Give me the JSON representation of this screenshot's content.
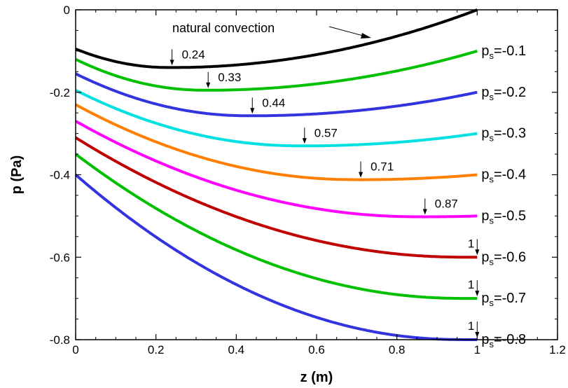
{
  "chart_data": {
    "type": "line",
    "xlabel": "z (m)",
    "ylabel": "p (Pa)",
    "xlim": [
      0,
      1.2
    ],
    "ylim": [
      -0.8,
      0
    ],
    "x_ticks": [
      "0",
      "0.2",
      "0.4",
      "0.6",
      "0.8",
      "1",
      "1.2"
    ],
    "y_ticks": [
      "0",
      "-0.2",
      "-0.4",
      "-0.6",
      "-0.8"
    ],
    "grid": false,
    "annotation_text": "natural convection",
    "series": [
      {
        "name": "natural convection",
        "label_prefix": "",
        "label_sub": "",
        "label_value": "",
        "color": "#000000",
        "start": -0.095,
        "end": 0.0,
        "min_z": 0.24,
        "min_p": -0.14,
        "min_label": "0.24"
      },
      {
        "name": "ps=-0.1",
        "label_prefix": "p",
        "label_sub": "s",
        "label_value": "=-0.1",
        "color": "#00c000",
        "start": -0.12,
        "end": -0.1,
        "min_z": 0.33,
        "min_p": -0.195,
        "min_label": "0.33"
      },
      {
        "name": "ps=-0.2",
        "label_prefix": "p",
        "label_sub": "s",
        "label_value": "=-0.2",
        "color": "#3333e0",
        "start": -0.155,
        "end": -0.2,
        "min_z": 0.44,
        "min_p": -0.257,
        "min_label": "0.44"
      },
      {
        "name": "ps=-0.3",
        "label_prefix": "p",
        "label_sub": "s",
        "label_value": "=-0.3",
        "color": "#00e0e0",
        "start": -0.195,
        "end": -0.3,
        "min_z": 0.57,
        "min_p": -0.33,
        "min_label": "0.57"
      },
      {
        "name": "ps=-0.4",
        "label_prefix": "p",
        "label_sub": "s",
        "label_value": "=-0.4",
        "color": "#ff8000",
        "start": -0.23,
        "end": -0.4,
        "min_z": 0.71,
        "min_p": -0.412,
        "min_label": "0.71"
      },
      {
        "name": "ps=-0.5",
        "label_prefix": "p",
        "label_sub": "s",
        "label_value": "=-0.5",
        "color": "#ff00ff",
        "start": -0.27,
        "end": -0.5,
        "min_z": 0.87,
        "min_p": -0.502,
        "min_label": "0.87"
      },
      {
        "name": "ps=-0.6",
        "label_prefix": "p",
        "label_sub": "s",
        "label_value": "=-0.6",
        "color": "#c00000",
        "start": -0.31,
        "end": -0.6,
        "min_z": 1.0,
        "min_p": -0.6,
        "min_label": "1"
      },
      {
        "name": "ps=-0.7",
        "label_prefix": "p",
        "label_sub": "s",
        "label_value": "=-0.7",
        "color": "#00c000",
        "start": -0.35,
        "end": -0.7,
        "min_z": 1.0,
        "min_p": -0.7,
        "min_label": "1"
      },
      {
        "name": "ps=-0.8",
        "label_prefix": "p",
        "label_sub": "s",
        "label_value": "=-0.8",
        "color": "#3333e0",
        "start": -0.4,
        "end": -0.8,
        "min_z": 1.0,
        "min_p": -0.8,
        "min_label": "1"
      }
    ]
  }
}
